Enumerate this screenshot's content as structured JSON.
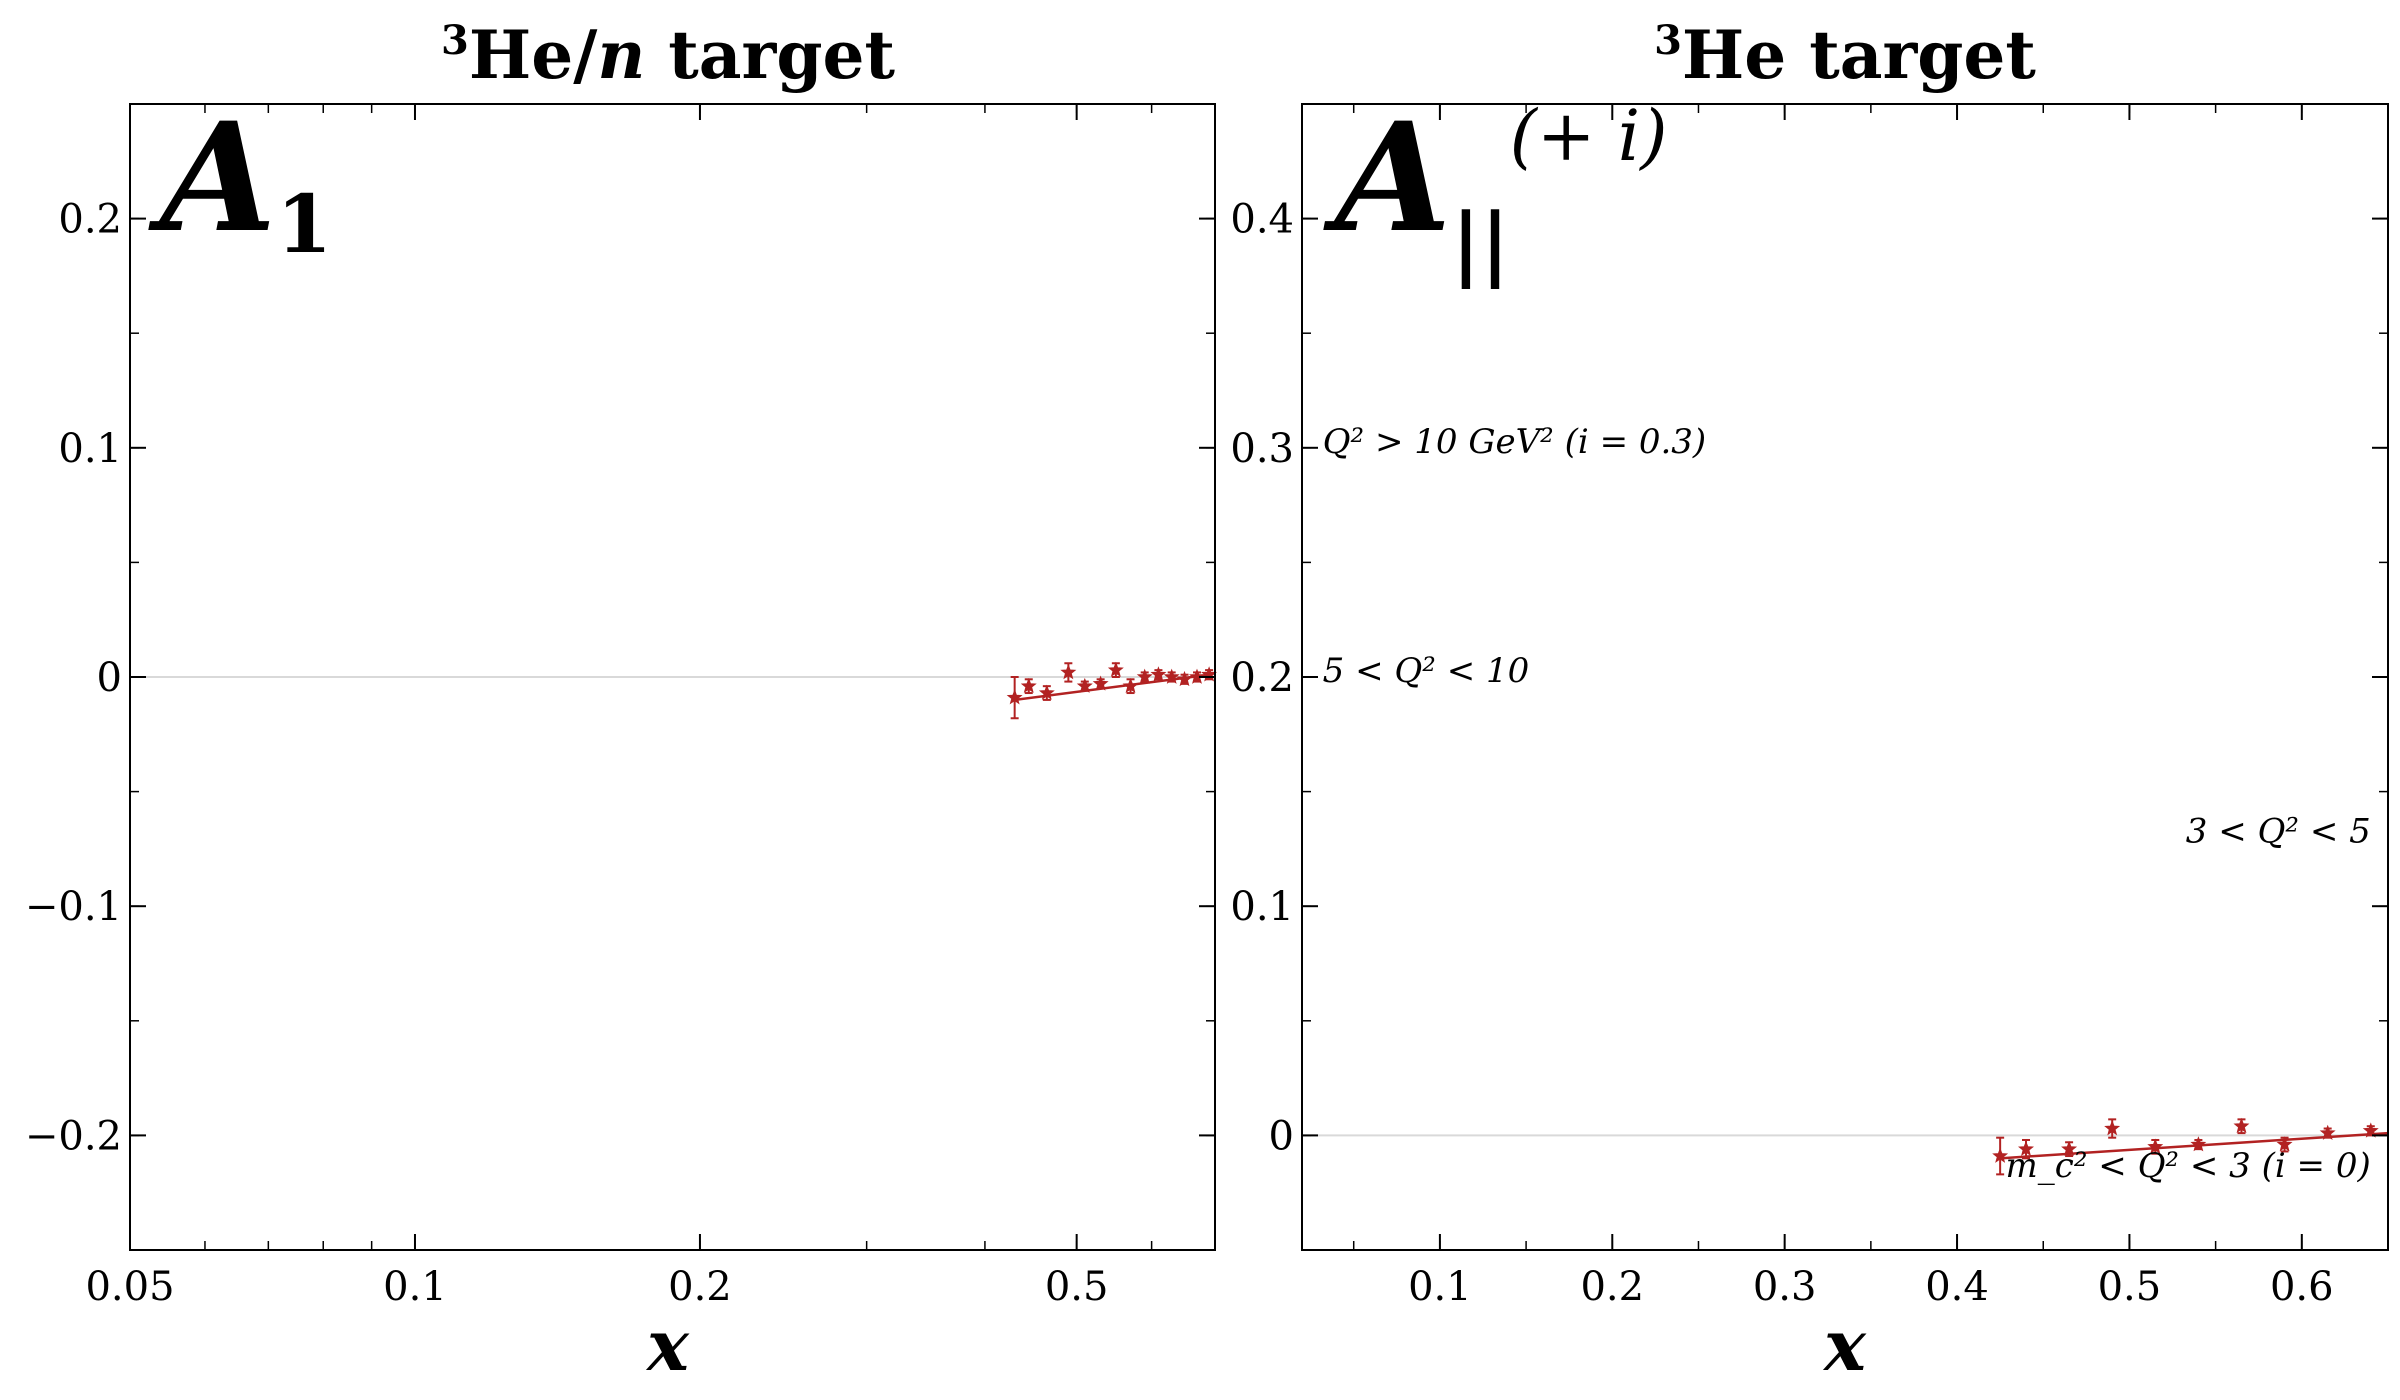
{
  "colors": {
    "data": "#b22222",
    "zero_line": "#d9d9d9",
    "axis": "#000000"
  },
  "chart_data": [
    {
      "type": "scatter",
      "title": "³He/n target",
      "title_parts": {
        "sup": "3",
        "main": "He/",
        "italic": "n",
        "rest": " target"
      },
      "panel_label": "A",
      "panel_label_sub": "1",
      "xlabel": "x",
      "ylabel": "",
      "xscale": "log",
      "xlim": [
        0.05,
        0.7
      ],
      "ylim": [
        -0.25,
        0.25
      ],
      "xticks": [
        0.05,
        0.1,
        0.2,
        0.5
      ],
      "xtick_labels": [
        "0.05",
        "0.1",
        "0.2",
        "0.5"
      ],
      "yticks": [
        -0.2,
        -0.1,
        0,
        0.1,
        0.2
      ],
      "ytick_labels": [
        "−0.2",
        "−0.1",
        "0",
        "0.1",
        "0.2"
      ],
      "zero_line": true,
      "grid": false,
      "series": [
        {
          "x": [
            0.43,
            0.445,
            0.465,
            0.49,
            0.51,
            0.53,
            0.55,
            0.57,
            0.59,
            0.61,
            0.63,
            0.65,
            0.67,
            0.69
          ],
          "y": [
            -0.009,
            -0.004,
            -0.007,
            0.002,
            -0.004,
            -0.003,
            0.003,
            -0.004,
            0.0,
            0.001,
            0.0,
            -0.001,
            0.0,
            0.001
          ],
          "yerr": [
            0.009,
            0.003,
            0.003,
            0.004,
            0.002,
            0.002,
            0.003,
            0.003,
            0.002,
            0.002,
            0.002,
            0.002,
            0.002,
            0.002
          ],
          "fit": [
            [
              0.43,
              -0.01
            ],
            [
              0.69,
              0.001
            ]
          ]
        }
      ]
    },
    {
      "type": "scatter",
      "title": "³He target",
      "title_parts": {
        "sup": "3",
        "main": "He target"
      },
      "panel_label": "A",
      "panel_label_sub": "||",
      "panel_label_sup": "(+ i)",
      "xlabel": "x",
      "ylabel": "",
      "xscale": "linear",
      "xlim": [
        0.02,
        0.65
      ],
      "ylim": [
        -0.05,
        0.45
      ],
      "xticks": [
        0.1,
        0.2,
        0.3,
        0.4,
        0.5,
        0.6
      ],
      "xtick_labels": [
        "0.1",
        "0.2",
        "0.3",
        "0.4",
        "0.5",
        "0.6"
      ],
      "yticks": [
        0,
        0.1,
        0.2,
        0.3,
        0.4
      ],
      "ytick_labels": [
        "0",
        "0.1",
        "0.2",
        "0.3",
        "0.4"
      ],
      "zero_line": true,
      "grid": false,
      "annotations": [
        {
          "text": "Q² > 10 GeV² (i = 0.3)",
          "x": 0.032,
          "y": 0.303,
          "anchor": "start"
        },
        {
          "text": "5 < Q² < 10",
          "x": 0.032,
          "y": 0.203,
          "anchor": "start"
        },
        {
          "text": "3 < Q² < 5",
          "x": 0.64,
          "y": 0.133,
          "anchor": "end"
        },
        {
          "text": "m_c² < Q² < 3 (i = 0)",
          "x": 0.64,
          "y": -0.013,
          "anchor": "end"
        }
      ],
      "series": [
        {
          "x": [
            0.425,
            0.44,
            0.465,
            0.49,
            0.515,
            0.54,
            0.565,
            0.59,
            0.615,
            0.64
          ],
          "y": [
            -0.009,
            -0.006,
            -0.006,
            0.003,
            -0.005,
            -0.004,
            0.004,
            -0.004,
            0.001,
            0.002
          ],
          "yerr": [
            0.008,
            0.004,
            0.003,
            0.004,
            0.003,
            0.002,
            0.003,
            0.003,
            0.002,
            0.002
          ],
          "fit": [
            [
              0.425,
              -0.01
            ],
            [
              0.65,
              0.001
            ]
          ]
        }
      ]
    }
  ]
}
